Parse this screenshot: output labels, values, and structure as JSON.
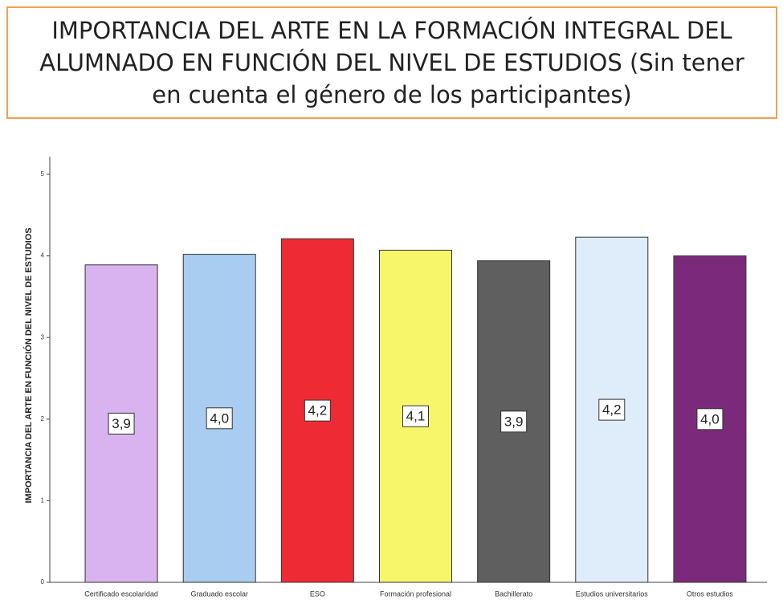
{
  "chart_data": {
    "type": "bar",
    "title": "IMPORTANCIA DEL ARTE EN LA FORMACIÓN INTEGRAL DEL ALUMNADO EN FUNCIÓN DEL NIVEL DE ESTUDIOS (Sin tener en cuenta el género de los participantes)",
    "y_label": "IMPORTANCIA DEL ARTE EN FUNCIÓN DEL NIVEL DE ESTUDIOS",
    "categories": [
      "Certificado escolaridad",
      "Graduado escolar",
      "ESO",
      "Formación profesional",
      "Bachillerato",
      "Estudios universitarios",
      "Otros estudios"
    ],
    "values": [
      3.89,
      4.02,
      4.21,
      4.07,
      3.94,
      4.23,
      4.0
    ],
    "value_labels": [
      "3,9",
      "4,0",
      "4,2",
      "4,1",
      "3,9",
      "4,2",
      "4,0"
    ],
    "colors": [
      "#d9b3f0",
      "#a8cdf0",
      "#ee2b35",
      "#f7f66b",
      "#5f5f5f",
      "#dfedfb",
      "#7b2a7b"
    ],
    "ylim": [
      0,
      5
    ],
    "yticks": [
      0,
      1,
      2,
      3,
      4,
      5
    ]
  }
}
